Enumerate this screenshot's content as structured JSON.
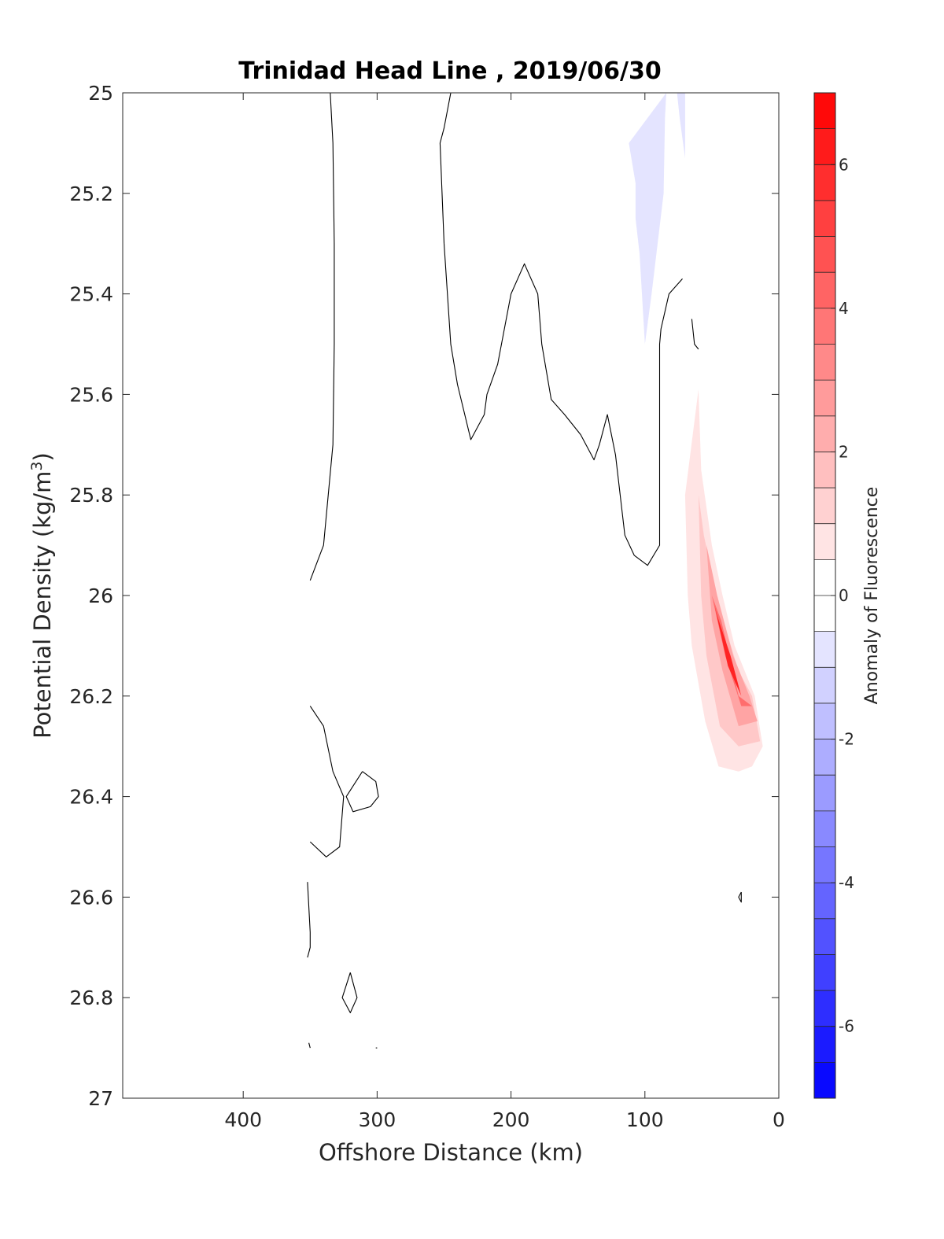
{
  "chart_data": {
    "type": "contour",
    "title": "Trinidad Head Line , 2019/06/30",
    "xlabel": "Offshore Distance (km)",
    "ylabel_main": "Potential Density (kg/m",
    "ylabel_sup": "3",
    "ylabel_end": ")",
    "colorbar_label": "Anomaly of Fluorescence",
    "xlim": [
      490,
      0
    ],
    "x_reversed": true,
    "ylim": [
      25,
      27
    ],
    "y_reversed": true,
    "x_ticks": [
      400,
      300,
      200,
      100,
      0
    ],
    "x_tick_labels": [
      "400",
      "300",
      "200",
      "100",
      "0"
    ],
    "y_ticks": [
      25,
      25.2,
      25.4,
      25.6,
      25.8,
      26,
      26.2,
      26.4,
      26.6,
      26.8,
      27
    ],
    "y_tick_labels": [
      "25",
      "25.2",
      "25.4",
      "25.6",
      "25.8",
      "26",
      "26.2",
      "26.4",
      "26.6",
      "26.8",
      "27"
    ],
    "colorbar": {
      "min": -7,
      "max": 7,
      "step": 0.5,
      "ticks": [
        -6,
        -4,
        -2,
        0,
        2,
        4,
        6
      ],
      "tick_labels": [
        "-6",
        "-4",
        "-2",
        "0",
        "2",
        "4",
        "6"
      ],
      "neg_color": "#0000ff",
      "pos_color": "#ff0000",
      "zero_color": "#ffffff"
    },
    "filled_regions": [
      {
        "name": "negative-anomaly",
        "level": -0.75,
        "points": [
          [
            112,
            25.1
          ],
          [
            107,
            25.18
          ],
          [
            107,
            25.25
          ],
          [
            104,
            25.32
          ],
          [
            100,
            25.5
          ],
          [
            95,
            25.4
          ],
          [
            86,
            25.2
          ],
          [
            85,
            25.05
          ],
          [
            84,
            25
          ]
        ]
      },
      {
        "name": "negative-anomaly-small",
        "level": -0.75,
        "points": [
          [
            76,
            25
          ],
          [
            74,
            25.05
          ],
          [
            70,
            25.13
          ],
          [
            70,
            25
          ]
        ]
      },
      {
        "name": "positive-anomaly-0.75",
        "level": 0.75,
        "points": [
          [
            60,
            25.59
          ],
          [
            70,
            25.8
          ],
          [
            68,
            26
          ],
          [
            65,
            26.1
          ],
          [
            55,
            26.25
          ],
          [
            45,
            26.34
          ],
          [
            30,
            26.35
          ],
          [
            20,
            26.34
          ],
          [
            12,
            26.3
          ],
          [
            18,
            26.2
          ],
          [
            24,
            26.16
          ],
          [
            33,
            26.1
          ],
          [
            42,
            26
          ],
          [
            50,
            25.9
          ],
          [
            58,
            25.75
          ]
        ]
      },
      {
        "name": "positive-anomaly-1.5",
        "level": 1.5,
        "points": [
          [
            60,
            25.8
          ],
          [
            58,
            26
          ],
          [
            54,
            26.12
          ],
          [
            44,
            26.26
          ],
          [
            30,
            26.3
          ],
          [
            14,
            26.29
          ],
          [
            20,
            26.2
          ],
          [
            30,
            26.15
          ],
          [
            45,
            26.02
          ],
          [
            56,
            25.88
          ]
        ]
      },
      {
        "name": "positive-anomaly-2.5",
        "level": 2.5,
        "points": [
          [
            54,
            25.9
          ],
          [
            50,
            26.05
          ],
          [
            42,
            26.15
          ],
          [
            30,
            26.26
          ],
          [
            16,
            26.25
          ],
          [
            22,
            26.2
          ],
          [
            34,
            26.12
          ],
          [
            46,
            26
          ]
        ]
      },
      {
        "name": "positive-anomaly-4",
        "level": 4,
        "points": [
          [
            50,
            26.0
          ],
          [
            40,
            26.12
          ],
          [
            28,
            26.22
          ],
          [
            20,
            26.22
          ],
          [
            30,
            26.2
          ],
          [
            43,
            26.05
          ]
        ]
      },
      {
        "name": "positive-anomaly-6",
        "level": 6,
        "points": [
          [
            48,
            26.02
          ],
          [
            38,
            26.14
          ],
          [
            28,
            26.2
          ],
          [
            36,
            26.12
          ],
          [
            46,
            26.04
          ]
        ]
      }
    ],
    "contour_lines": [
      {
        "level": 0,
        "points": [
          [
            335,
            25
          ],
          [
            333,
            25.1
          ],
          [
            332,
            25.3
          ],
          [
            332,
            25.5
          ],
          [
            333,
            25.7
          ],
          [
            340,
            25.9
          ],
          [
            350,
            25.97
          ]
        ]
      },
      {
        "level": 0,
        "points": [
          [
            245,
            25
          ],
          [
            250,
            25.07
          ],
          [
            253,
            25.1
          ],
          [
            250,
            25.3
          ],
          [
            245,
            25.5
          ],
          [
            240,
            25.58
          ],
          [
            230,
            25.69
          ],
          [
            220,
            25.64
          ],
          [
            218,
            25.6
          ],
          [
            210,
            25.54
          ],
          [
            200,
            25.4
          ],
          [
            190,
            25.34
          ],
          [
            180,
            25.4
          ],
          [
            177,
            25.5
          ],
          [
            170,
            25.61
          ],
          [
            160,
            25.64
          ],
          [
            148,
            25.68
          ],
          [
            138,
            25.73
          ],
          [
            134,
            25.7
          ],
          [
            128,
            25.64
          ],
          [
            122,
            25.72
          ],
          [
            115,
            25.88
          ],
          [
            108,
            25.92
          ],
          [
            98,
            25.94
          ],
          [
            89,
            25.9
          ],
          [
            89,
            25.5
          ],
          [
            88,
            25.47
          ],
          [
            82,
            25.4
          ],
          [
            72,
            25.37
          ]
        ]
      },
      {
        "level": 0,
        "points": [
          [
            65,
            25.45
          ],
          [
            63,
            25.5
          ],
          [
            60,
            25.51
          ]
        ]
      },
      {
        "level": 0,
        "points": [
          [
            350,
            26.22
          ],
          [
            340,
            26.26
          ],
          [
            333,
            26.35
          ],
          [
            325,
            26.4
          ],
          [
            328,
            26.5
          ],
          [
            338,
            26.52
          ],
          [
            350,
            26.49
          ]
        ]
      },
      {
        "level": 0,
        "points": [
          [
            311,
            26.35
          ],
          [
            301,
            26.37
          ],
          [
            299,
            26.4
          ],
          [
            305,
            26.42
          ],
          [
            318,
            26.43
          ],
          [
            323,
            26.4
          ],
          [
            311,
            26.35
          ]
        ]
      },
      {
        "level": 0,
        "points": [
          [
            28,
            26.59
          ],
          [
            30,
            26.6
          ],
          [
            28,
            26.61
          ],
          [
            28,
            26.59
          ]
        ]
      },
      {
        "level": 0,
        "points": [
          [
            352,
            26.57
          ],
          [
            350,
            26.67
          ],
          [
            350,
            26.7
          ],
          [
            352,
            26.72
          ]
        ]
      },
      {
        "level": 0,
        "points": [
          [
            320,
            26.75
          ],
          [
            326,
            26.8
          ],
          [
            320,
            26.83
          ],
          [
            315,
            26.8
          ],
          [
            320,
            26.75
          ]
        ]
      },
      {
        "level": 0,
        "points": [
          [
            351,
            26.89
          ],
          [
            350,
            26.9
          ]
        ]
      },
      {
        "level": 0,
        "points": [
          [
            301,
            26.9
          ],
          [
            300,
            26.9
          ]
        ]
      }
    ]
  }
}
